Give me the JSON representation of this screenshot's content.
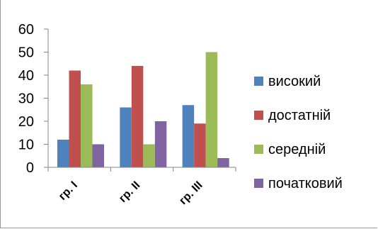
{
  "title_fragment": "",
  "chart_data": {
    "type": "bar",
    "categories": [
      "гр. І",
      "гр. ІІ",
      "гр. ІІІ"
    ],
    "series": [
      {
        "name": "високий",
        "color": "#4f81bd",
        "values": [
          12,
          26,
          27
        ]
      },
      {
        "name": "достатній",
        "color": "#c0504d",
        "values": [
          42,
          44,
          19
        ]
      },
      {
        "name": "середній",
        "color": "#9bbb59",
        "values": [
          36,
          10,
          50
        ]
      },
      {
        "name": "початковий",
        "color": "#8064a2",
        "values": [
          10,
          20,
          4
        ]
      }
    ],
    "ylim": [
      0,
      60
    ],
    "yticks": [
      "0",
      "10",
      "20",
      "30",
      "40",
      "50",
      "60"
    ],
    "grid": false,
    "legend_position": "right"
  }
}
